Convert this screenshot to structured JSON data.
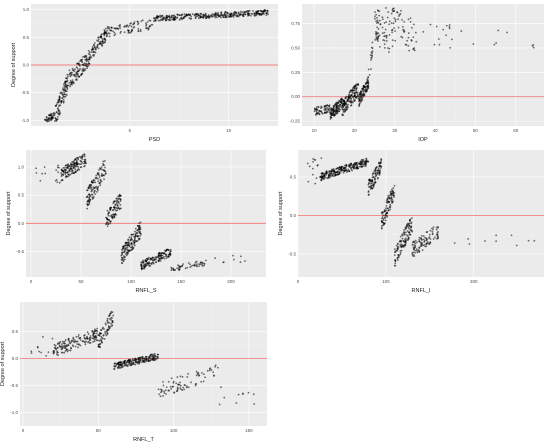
{
  "chart_data": [
    {
      "type": "scatter",
      "xlabel": "PSD",
      "ylabel": "Degree of support",
      "xlim": [
        0,
        12.5
      ],
      "ylim": [
        -1.1,
        1.1
      ],
      "xticks": [
        5,
        10,
        15
      ],
      "yticks": [
        -1.0,
        -0.5,
        0.0,
        0.5,
        1.0
      ],
      "ytick_labels": [
        "-1.0",
        "-0.5",
        "0.0",
        "0.5",
        "1.0"
      ],
      "hline": 0,
      "hline_color": "#f08080",
      "segments": [
        [
          0.7,
          1.2,
          -1.0,
          -0.9,
          45,
          0.06
        ],
        [
          1.2,
          2.0,
          -0.95,
          -0.2,
          110,
          0.18
        ],
        [
          2.0,
          3.0,
          -0.25,
          0.15,
          110,
          0.15
        ],
        [
          3.0,
          3.8,
          0.2,
          0.55,
          80,
          0.12
        ],
        [
          3.8,
          6.2,
          0.6,
          0.75,
          90,
          0.1
        ],
        [
          6.2,
          12.0,
          0.84,
          0.95,
          350,
          0.05
        ]
      ]
    },
    {
      "type": "scatter",
      "xlabel": "IOP",
      "ylabel": "",
      "xlim": [
        7,
        67
      ],
      "ylim": [
        -0.3,
        0.95
      ],
      "xticks": [
        10,
        20,
        30,
        40,
        50,
        60
      ],
      "yticks": [
        -0.25,
        0.0,
        0.25,
        0.5,
        0.75
      ],
      "ytick_labels": [
        "-0.25",
        "0.00",
        "0.25",
        "0.50",
        "0.75"
      ],
      "hline": 0,
      "hline_color": "#f08080",
      "segments": [
        [
          10,
          14,
          -0.15,
          -0.12,
          60,
          0.04
        ],
        [
          14,
          17,
          -0.18,
          -0.06,
          120,
          0.06
        ],
        [
          17,
          21,
          -0.12,
          0.08,
          150,
          0.08
        ],
        [
          21,
          23.5,
          -0.05,
          0.15,
          100,
          0.06
        ],
        [
          23.5,
          24.5,
          0.2,
          0.5,
          15,
          0.1
        ]
      ],
      "scatter": [
        [
          25,
          26,
          0.55,
          0.92,
          30
        ],
        [
          26,
          30,
          0.45,
          0.92,
          50
        ],
        [
          30,
          35,
          0.45,
          0.9,
          40
        ],
        [
          35,
          44,
          0.5,
          0.75,
          15
        ],
        [
          44,
          65,
          0.5,
          0.7,
          10
        ]
      ]
    },
    {
      "type": "scatter",
      "xlabel": "RNFL_S",
      "ylabel": "Degree of support",
      "xlim": [
        -5,
        235
      ],
      "ylim": [
        -0.95,
        1.3
      ],
      "xticks": [
        0,
        50,
        100,
        150,
        200
      ],
      "yticks": [
        -0.5,
        0.0,
        0.5,
        1.0
      ],
      "ytick_labels": [
        "-0.5",
        "0.0",
        "0.5",
        "1.0"
      ],
      "hline": 0,
      "hline_color": "#f08080",
      "segments": [
        [
          30,
          55,
          0.85,
          1.15,
          150,
          0.12
        ],
        [
          55,
          75,
          0.4,
          1.0,
          120,
          0.18
        ],
        [
          75,
          90,
          0.05,
          0.4,
          100,
          0.15
        ],
        [
          90,
          110,
          -0.6,
          -0.1,
          150,
          0.15
        ],
        [
          110,
          140,
          -0.75,
          -0.5,
          150,
          0.08
        ],
        [
          140,
          175,
          -0.8,
          -0.7,
          50,
          0.05
        ]
      ],
      "scatter": [
        [
          5,
          30,
          0.7,
          1.1,
          15
        ],
        [
          175,
          215,
          -0.7,
          -0.5,
          8
        ]
      ]
    },
    {
      "type": "scatter",
      "xlabel": "RNFL_I",
      "ylabel": "Degree of support",
      "xlim": [
        0,
        280
      ],
      "ylim": [
        -0.8,
        0.85
      ],
      "xticks": [
        0,
        100,
        200
      ],
      "yticks": [
        -0.5,
        0.0,
        0.5
      ],
      "ytick_labels": [
        "-0.5",
        "0.0",
        "0.5"
      ],
      "hline": 0,
      "hline_color": "#f08080",
      "segments": [
        [
          25,
          80,
          0.5,
          0.7,
          250,
          0.05
        ],
        [
          80,
          95,
          0.35,
          0.65,
          100,
          0.1
        ],
        [
          95,
          110,
          -0.1,
          0.35,
          100,
          0.12
        ],
        [
          110,
          130,
          -0.55,
          -0.1,
          120,
          0.12
        ],
        [
          130,
          160,
          -0.45,
          -0.2,
          100,
          0.1
        ]
      ],
      "scatter": [
        [
          10,
          30,
          0.4,
          0.75,
          15
        ],
        [
          160,
          270,
          -0.45,
          -0.2,
          10
        ]
      ]
    },
    {
      "type": "scatter",
      "xlabel": "RNFL_T",
      "ylabel": "Degree of support",
      "xlim": [
        -2,
        162
      ],
      "ylim": [
        -1.25,
        1.05
      ],
      "xticks": [
        0,
        50,
        100,
        150
      ],
      "yticks": [
        -1.0,
        -0.5,
        0.0,
        0.5
      ],
      "ytick_labels": [
        "-1.0",
        "-0.5",
        "0.0",
        "0.5"
      ],
      "hline": 0,
      "hline_color": "#f08080",
      "segments": [
        [
          20,
          50,
          0.15,
          0.45,
          150,
          0.12
        ],
        [
          50,
          60,
          0.3,
          0.8,
          80,
          0.15
        ],
        [
          60,
          90,
          -0.15,
          0.05,
          200,
          0.06
        ],
        [
          90,
          130,
          -0.6,
          -0.2,
          80,
          0.15
        ]
      ],
      "scatter": [
        [
          5,
          25,
          0.05,
          0.45,
          15
        ],
        [
          130,
          155,
          -0.9,
          -0.5,
          10
        ]
      ]
    }
  ]
}
